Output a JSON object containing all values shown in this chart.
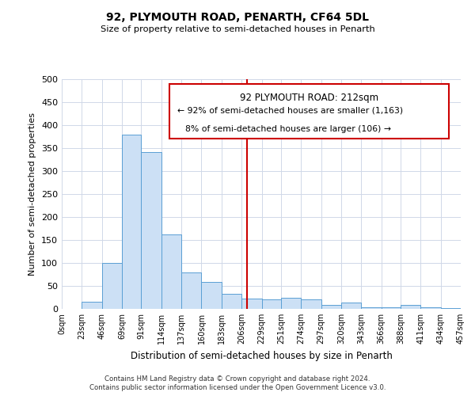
{
  "title": "92, PLYMOUTH ROAD, PENARTH, CF64 5DL",
  "subtitle": "Size of property relative to semi-detached houses in Penarth",
  "xlabel": "Distribution of semi-detached houses by size in Penarth",
  "ylabel": "Number of semi-detached properties",
  "bin_edges": [
    0,
    23,
    46,
    69,
    91,
    114,
    137,
    160,
    183,
    206,
    229,
    251,
    274,
    297,
    320,
    343,
    366,
    388,
    411,
    434,
    457
  ],
  "bar_heights": [
    0,
    15,
    100,
    380,
    342,
    162,
    80,
    58,
    33,
    22,
    20,
    24,
    21,
    8,
    14,
    3,
    3,
    8,
    3,
    2
  ],
  "bar_color": "#cce0f5",
  "bar_edge_color": "#5a9fd4",
  "property_value": 212,
  "annotation_title": "92 PLYMOUTH ROAD: 212sqm",
  "annotation_line1": "← 92% of semi-detached houses are smaller (1,163)",
  "annotation_line2": "8% of semi-detached houses are larger (106) →",
  "vline_color": "#cc0000",
  "annotation_box_edge_color": "#cc0000",
  "ylim": [
    0,
    500
  ],
  "tick_labels": [
    "0sqm",
    "23sqm",
    "46sqm",
    "69sqm",
    "91sqm",
    "114sqm",
    "137sqm",
    "160sqm",
    "183sqm",
    "206sqm",
    "229sqm",
    "251sqm",
    "274sqm",
    "297sqm",
    "320sqm",
    "343sqm",
    "366sqm",
    "388sqm",
    "411sqm",
    "434sqm",
    "457sqm"
  ],
  "footer_line1": "Contains HM Land Registry data © Crown copyright and database right 2024.",
  "footer_line2": "Contains public sector information licensed under the Open Government Licence v3.0.",
  "background_color": "#ffffff",
  "grid_color": "#d0d8e8"
}
